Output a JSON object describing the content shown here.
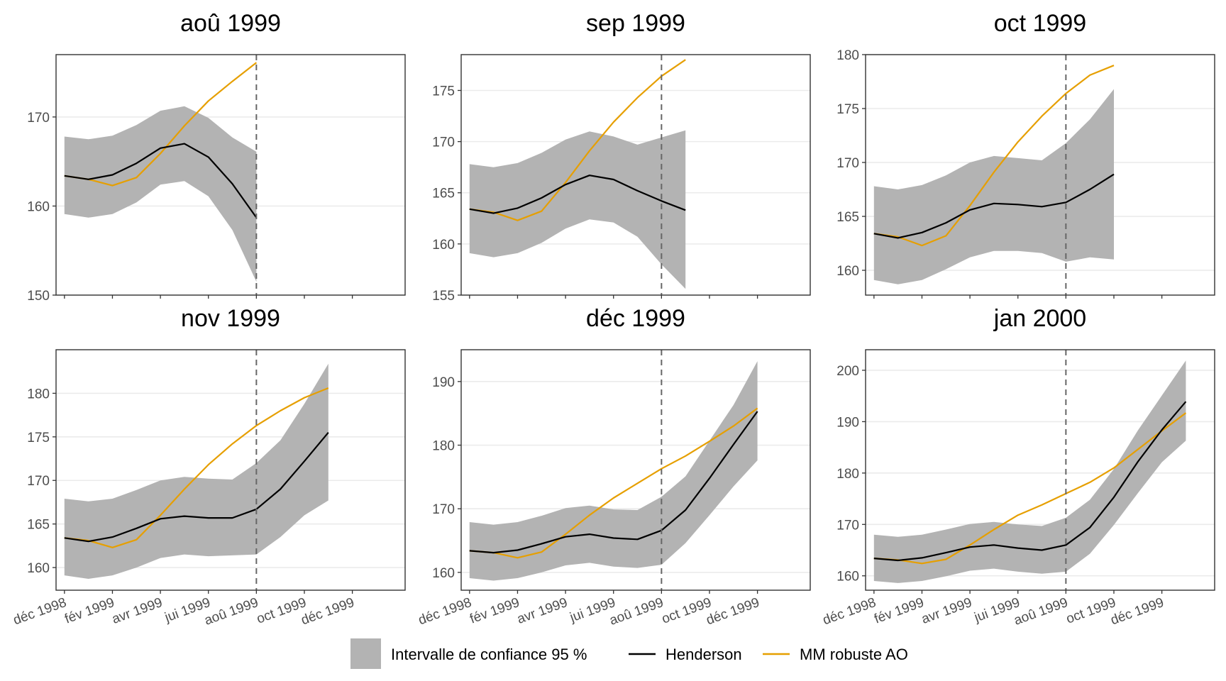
{
  "chart_data": {
    "type": "line",
    "colors": {
      "band": "#b3b3b3",
      "henderson": "#000000",
      "robust": "#e69f00",
      "vline": "#666666",
      "grid": "#ebebeb",
      "border": "#333333"
    },
    "legend": {
      "position": "bottom",
      "items": [
        {
          "key": "band",
          "label": "Intervalle de confiance 95 %"
        },
        {
          "key": "henderson",
          "label": "Henderson"
        },
        {
          "key": "robust",
          "label": "MM robuste AO"
        }
      ]
    },
    "x_labels": [
      "déc 1998",
      "fév 1999",
      "avr 1999",
      "jui 1999",
      "aoû 1999",
      "oct 1999",
      "déc 1999"
    ],
    "x_label_months": [
      0,
      2,
      4,
      6,
      8,
      10,
      12
    ],
    "x_domain": [
      -0.35,
      14.2
    ],
    "vline_month": 8,
    "panels": [
      {
        "title": "aoû 1999",
        "ylim": [
          150,
          177
        ],
        "yticks": [
          150,
          160,
          170
        ],
        "months": [
          0,
          1,
          2,
          3,
          4,
          5,
          6,
          7,
          8
        ],
        "henderson": [
          163.4,
          163.0,
          163.5,
          164.8,
          166.5,
          167.0,
          165.5,
          162.5,
          158.7
        ],
        "lower": [
          159.1,
          158.7,
          159.1,
          160.4,
          162.4,
          162.8,
          161.1,
          157.3,
          151.5
        ],
        "upper": [
          167.8,
          167.5,
          167.9,
          169.1,
          170.7,
          171.2,
          169.9,
          167.7,
          166.1
        ],
        "robust": [
          163.4,
          163.0,
          162.3,
          163.2,
          165.9,
          169.0,
          171.8,
          174.0,
          176.1
        ]
      },
      {
        "title": "sep 1999",
        "ylim": [
          155,
          178.5
        ],
        "yticks": [
          155,
          160,
          165,
          170,
          175
        ],
        "months": [
          0,
          1,
          2,
          3,
          4,
          5,
          6,
          7,
          8,
          9
        ],
        "henderson": [
          163.4,
          163.0,
          163.5,
          164.5,
          165.8,
          166.7,
          166.3,
          165.2,
          164.2,
          163.3
        ],
        "lower": [
          159.1,
          158.7,
          159.1,
          160.1,
          161.5,
          162.4,
          162.1,
          160.7,
          158.0,
          155.6
        ],
        "upper": [
          167.8,
          167.5,
          167.9,
          168.9,
          170.2,
          171.0,
          170.5,
          169.7,
          170.4,
          171.1
        ],
        "robust": [
          163.4,
          163.1,
          162.3,
          163.2,
          166.0,
          169.1,
          171.9,
          174.3,
          176.4,
          178.0
        ]
      },
      {
        "title": "oct 1999",
        "ylim": [
          157.7,
          180
        ],
        "yticks": [
          160,
          165,
          170,
          175,
          180
        ],
        "months": [
          0,
          1,
          2,
          3,
          4,
          5,
          6,
          7,
          8,
          9,
          10
        ],
        "henderson": [
          163.4,
          163.0,
          163.5,
          164.4,
          165.6,
          166.2,
          166.1,
          165.9,
          166.3,
          167.5,
          168.9
        ],
        "lower": [
          159.1,
          158.7,
          159.1,
          160.1,
          161.2,
          161.8,
          161.8,
          161.6,
          160.8,
          161.2,
          161.0
        ],
        "upper": [
          167.8,
          167.5,
          167.9,
          168.8,
          170.0,
          170.6,
          170.4,
          170.2,
          171.8,
          174.0,
          176.8
        ],
        "robust": [
          163.4,
          163.1,
          162.3,
          163.2,
          166.0,
          169.1,
          171.9,
          174.3,
          176.4,
          178.1,
          179.0
        ]
      },
      {
        "title": "nov 1999",
        "ylim": [
          157.4,
          185
        ],
        "yticks": [
          160,
          165,
          170,
          175,
          180
        ],
        "months": [
          0,
          1,
          2,
          3,
          4,
          5,
          6,
          7,
          8,
          9,
          10,
          11
        ],
        "henderson": [
          163.4,
          163.0,
          163.5,
          164.5,
          165.6,
          165.9,
          165.7,
          165.7,
          166.7,
          169.0,
          172.2,
          175.5
        ],
        "lower": [
          159.1,
          158.7,
          159.1,
          160.0,
          161.1,
          161.5,
          161.3,
          161.4,
          161.5,
          163.5,
          166.0,
          167.7
        ],
        "upper": [
          167.9,
          167.6,
          167.9,
          168.9,
          170.0,
          170.4,
          170.2,
          170.1,
          172.0,
          174.6,
          178.8,
          183.4
        ],
        "robust": [
          163.4,
          163.1,
          162.3,
          163.2,
          166.0,
          169.0,
          171.8,
          174.2,
          176.3,
          178.0,
          179.5,
          180.6
        ]
      },
      {
        "title": "déc 1999",
        "ylim": [
          157.2,
          195
        ],
        "yticks": [
          160,
          170,
          180,
          190
        ],
        "months": [
          0,
          1,
          2,
          3,
          4,
          5,
          6,
          7,
          8,
          9,
          10,
          11,
          12
        ],
        "henderson": [
          163.4,
          163.1,
          163.5,
          164.5,
          165.6,
          166.0,
          165.4,
          165.2,
          166.6,
          169.8,
          174.8,
          180.1,
          185.3
        ],
        "lower": [
          159.1,
          158.7,
          159.1,
          160.0,
          161.1,
          161.5,
          160.9,
          160.7,
          161.2,
          164.6,
          169.0,
          173.5,
          177.6
        ],
        "upper": [
          167.9,
          167.5,
          167.9,
          168.9,
          170.1,
          170.5,
          169.9,
          169.8,
          171.9,
          175.1,
          180.7,
          186.3,
          193.2
        ],
        "robust": [
          163.4,
          163.1,
          162.3,
          163.2,
          166.0,
          169.0,
          171.7,
          174.0,
          176.3,
          178.3,
          180.6,
          183.0,
          185.8
        ]
      },
      {
        "title": "jan 2000",
        "ylim": [
          157.2,
          204
        ],
        "yticks": [
          160,
          170,
          180,
          190,
          200
        ],
        "months": [
          0,
          1,
          2,
          3,
          4,
          5,
          6,
          7,
          8,
          9,
          10,
          11,
          12,
          13
        ],
        "henderson": [
          163.4,
          163.0,
          163.5,
          164.5,
          165.6,
          166.0,
          165.4,
          165.0,
          166.0,
          169.4,
          175.3,
          182.2,
          188.4,
          193.9
        ],
        "lower": [
          159.0,
          158.6,
          159.0,
          159.9,
          161.0,
          161.4,
          160.8,
          160.4,
          160.8,
          164.3,
          169.9,
          176.1,
          182.1,
          186.3
        ],
        "upper": [
          168.0,
          167.6,
          168.0,
          169.0,
          170.1,
          170.5,
          170.0,
          169.7,
          171.3,
          174.8,
          180.8,
          188.3,
          195.1,
          201.9
        ],
        "robust": [
          163.4,
          163.1,
          162.4,
          163.2,
          166.0,
          169.0,
          171.8,
          173.8,
          176.0,
          178.2,
          181.0,
          184.6,
          188.2,
          191.7
        ]
      }
    ]
  }
}
